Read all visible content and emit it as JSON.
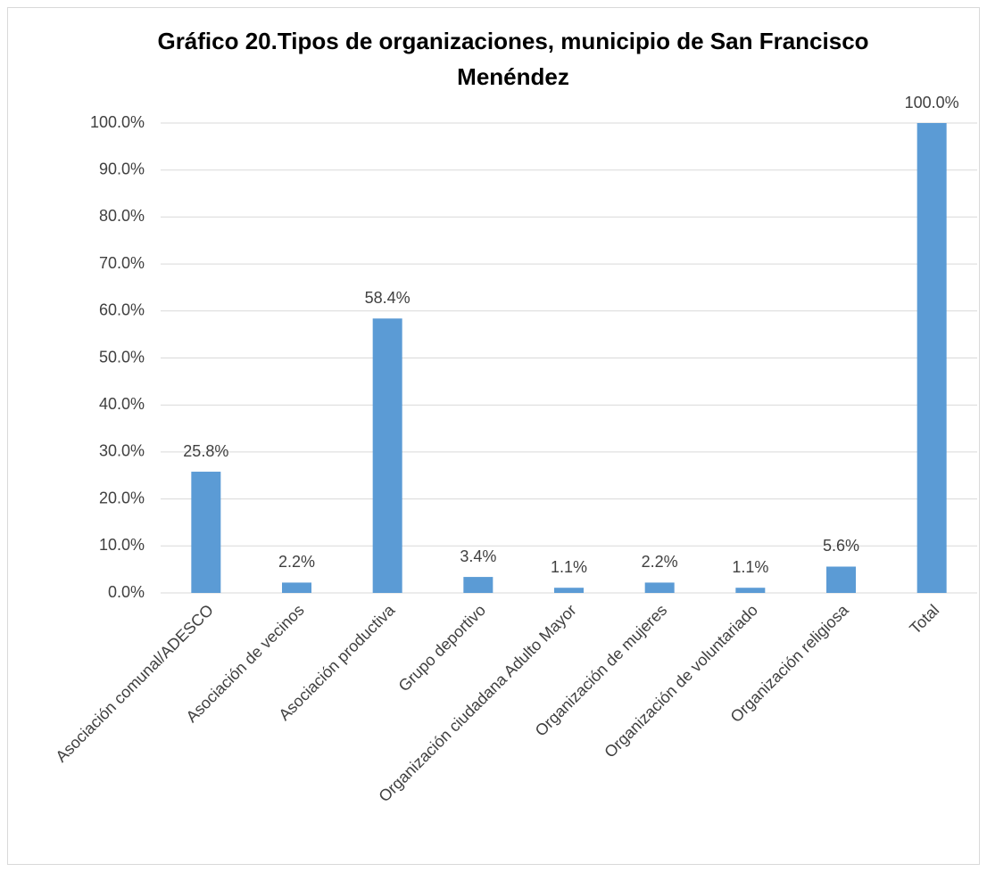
{
  "chart_data": {
    "type": "bar",
    "title": "Gráfico 20.Tipos de organizaciones, municipio de San Francisco Menéndez",
    "categories": [
      "Asociación comunal/ADESCO",
      "Asociación de vecinos",
      "Asociación productiva",
      "Grupo deportivo",
      "Organización ciudadana Adulto Mayor",
      "Organización de mujeres",
      "Organización de voluntariado",
      "Organización religiosa",
      "Total"
    ],
    "values": [
      25.8,
      2.2,
      58.4,
      3.4,
      1.1,
      2.2,
      1.1,
      5.6,
      100.0
    ],
    "value_labels": [
      "25.8%",
      "2.2%",
      "58.4%",
      "3.4%",
      "1.1%",
      "2.2%",
      "1.1%",
      "5.6%",
      "100.0%"
    ],
    "color": "#5b9bd5",
    "ylim": [
      0,
      100
    ],
    "yticks": [
      {
        "value": 0,
        "label": "0.0%"
      },
      {
        "value": 10,
        "label": "10.0%"
      },
      {
        "value": 20,
        "label": "20.0%"
      },
      {
        "value": 30,
        "label": "30.0%"
      },
      {
        "value": 40,
        "label": "40.0%"
      },
      {
        "value": 50,
        "label": "50.0%"
      },
      {
        "value": 60,
        "label": "60.0%"
      },
      {
        "value": 70,
        "label": "70.0%"
      },
      {
        "value": 80,
        "label": "80.0%"
      },
      {
        "value": 90,
        "label": "90.0%"
      },
      {
        "value": 100,
        "label": "100.0%"
      }
    ],
    "grid": true
  }
}
